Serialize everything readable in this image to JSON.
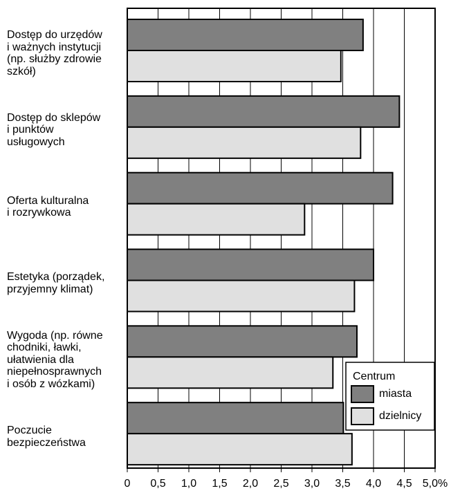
{
  "chart_data": {
    "type": "hbar",
    "categories": [
      "Dostęp do urzędów\ni ważnych instytucji\n(np. służby zdrowie\nszkół)",
      "Dostęp do sklepów\ni punktów\nusługowych",
      "Oferta kulturalna\ni rozrywkowa",
      "Estetyka (porządek,\nprzyjemny klimat)",
      "Wygoda (np. równe\nchodniki, ławki,\nułatwienia dla\nniepełnosprawnych\ni osób z wózkami)",
      "Poczucie\nbezpieczeństwa"
    ],
    "series": [
      {
        "name": "miasta",
        "color": "#808080",
        "values": [
          3.83,
          4.42,
          4.31,
          4.0,
          3.73,
          3.51
        ]
      },
      {
        "name": "dzielnicy",
        "color": "#e0e0e0",
        "values": [
          3.47,
          3.79,
          2.88,
          3.69,
          3.34,
          3.65
        ]
      }
    ],
    "legend_title": "Centrum",
    "legend": "lower right",
    "xlim": [
      0,
      5
    ],
    "xticks": [
      0,
      {
        "value": 0.5,
        "label": "0,5"
      },
      {
        "value": 1,
        "label": "1,0"
      },
      {
        "value": 1.5,
        "label": "1,5"
      },
      {
        "value": 2,
        "label": "2,0"
      },
      {
        "value": 2.5,
        "label": "2,5"
      },
      {
        "value": 3,
        "label": "3,0"
      },
      {
        "value": 3.5,
        "label": "3,5"
      },
      {
        "value": 4,
        "label": "4,0"
      },
      {
        "value": 4.5,
        "label": "4,5"
      },
      {
        "value": 5,
        "label": "5,0%"
      }
    ],
    "grid": true
  }
}
